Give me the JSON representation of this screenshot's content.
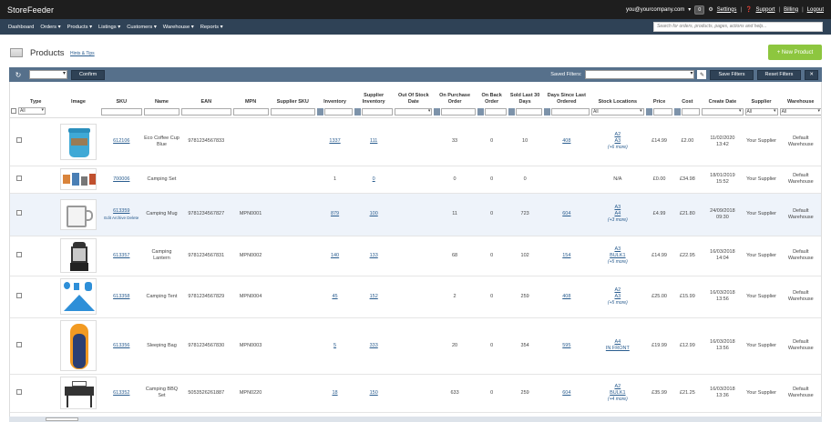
{
  "app": {
    "brand": "StoreFeeder",
    "user_email": "you@yourcompany.com",
    "notifications": "0",
    "settings": "Settings",
    "support": "Support",
    "billing": "Billing",
    "logout": "Logout"
  },
  "nav": {
    "items": [
      "Dashboard",
      "Orders ▾",
      "Products ▾",
      "Listings ▾",
      "Customers ▾",
      "Warehouse ▾",
      "Reports ▾"
    ],
    "search_placeholder": "Search for orders, products, pages, actions and help..."
  },
  "page": {
    "title": "Products",
    "hints": "Hints & Tips",
    "new_button": "+ New Product"
  },
  "toolbar": {
    "confirm": "Confirm",
    "saved_filters_label": "Saved Filters:",
    "save_filters": "Save Filters",
    "reset_filters": "Reset Filters"
  },
  "columns": {
    "type": "Type",
    "image": "Image",
    "sku": "SKU",
    "name": "Name",
    "ean": "EAN",
    "mpn": "MPN",
    "supplier_sku": "Supplier SKU",
    "inventory": "Inventory",
    "supplier_inventory": "Supplier Inventory",
    "out_of_stock": "Out Of Stock Date",
    "on_purchase": "On Purchase Order",
    "on_back": "On Back Order",
    "sold_last": "Sold Last 30 Days",
    "days_since": "Days Since Last Ordered",
    "stock_locations": "Stock Locations",
    "price": "Price",
    "cost": "Cost",
    "create_date": "Create Date",
    "supplier": "Supplier",
    "warehouse": "Warehouse"
  },
  "filters": {
    "all": "All"
  },
  "row_actions": {
    "edit": "Edit",
    "archive": "Archive",
    "delete": "Delete"
  },
  "rows": [
    {
      "sku": "612106",
      "name": "Eco Coffee Cup Blue",
      "ean": "9781234567833",
      "mpn": "",
      "inventory": "1337",
      "supplier_inventory": "111",
      "on_purchase": "33",
      "on_back": "0",
      "sold": "10",
      "days": "408",
      "loc1": "A2",
      "loc2": "A3",
      "loc_more": "(+6 more)",
      "price": "£14.99",
      "cost": "£2.00",
      "date": "11/02/2020",
      "time": "13:42",
      "supplier": "Your Supplier",
      "warehouse": "Default Warehouse"
    },
    {
      "sku": "700006",
      "name": "Camping Set",
      "ean": "",
      "mpn": "",
      "inventory": "1",
      "supplier_inventory": "0",
      "on_purchase": "0",
      "on_back": "0",
      "sold": "0",
      "days": "",
      "loc1": "N/A",
      "loc2": "",
      "loc_more": "",
      "price": "£0.00",
      "cost": "£34.98",
      "date": "18/01/2019",
      "time": "15:52",
      "supplier": "Your Supplier",
      "warehouse": "Default Warehouse"
    },
    {
      "sku": "613359",
      "name": "Camping Mug",
      "ean": "9781234567827",
      "mpn": "MPN0001",
      "inventory": "879",
      "supplier_inventory": "100",
      "on_purchase": "11",
      "on_back": "0",
      "sold": "723",
      "days": "604",
      "loc1": "A3",
      "loc2": "A4",
      "loc_more": "(+3 more)",
      "price": "£4.99",
      "cost": "£21.80",
      "date": "24/09/2018",
      "time": "09:30",
      "supplier": "Your Supplier",
      "warehouse": "Default Warehouse"
    },
    {
      "sku": "613357",
      "name": "Camping Lantern",
      "ean": "9781234567831",
      "mpn": "MPN0002",
      "inventory": "140",
      "supplier_inventory": "133",
      "on_purchase": "68",
      "on_back": "0",
      "sold": "102",
      "days": "154",
      "loc1": "A3",
      "loc2": "BULK1",
      "loc_more": "(+5 more)",
      "price": "£14.99",
      "cost": "£22.95",
      "date": "16/03/2018",
      "time": "14:04",
      "supplier": "Your Supplier",
      "warehouse": "Default Warehouse"
    },
    {
      "sku": "613358",
      "name": "Camping Tent",
      "ean": "9781234567829",
      "mpn": "MPN0004",
      "inventory": "45",
      "supplier_inventory": "152",
      "on_purchase": "2",
      "on_back": "0",
      "sold": "259",
      "days": "408",
      "loc1": "A2",
      "loc2": "A3",
      "loc_more": "(+5 more)",
      "price": "£25.00",
      "cost": "£15.99",
      "date": "16/03/2018",
      "time": "13:56",
      "supplier": "Your Supplier",
      "warehouse": "Default Warehouse"
    },
    {
      "sku": "613356",
      "name": "Sleeping Bag",
      "ean": "9781234567830",
      "mpn": "MPN0003",
      "inventory": "5",
      "supplier_inventory": "333",
      "on_purchase": "20",
      "on_back": "0",
      "sold": "354",
      "days": "595",
      "loc1": "A4",
      "loc2": "IN FRONT",
      "loc_more": "",
      "price": "£19.99",
      "cost": "£12.99",
      "date": "16/03/2018",
      "time": "13:56",
      "supplier": "Your Supplier",
      "warehouse": "Default Warehouse"
    },
    {
      "sku": "613352",
      "name": "Camping BBQ Set",
      "ean": "5053526261887",
      "mpn": "MPN0220",
      "inventory": "18",
      "supplier_inventory": "150",
      "on_purchase": "633",
      "on_back": "0",
      "sold": "259",
      "days": "604",
      "loc1": "A2",
      "loc2": "BULK1",
      "loc_more": "(+4 more)",
      "price": "£35.99",
      "cost": "£21.25",
      "date": "16/03/2018",
      "time": "13:36",
      "supplier": "Your Supplier",
      "warehouse": "Default Warehouse"
    }
  ],
  "icons": [
    "bell-icon",
    "gear-icon",
    "help-icon",
    "refresh-icon",
    "edit-icon",
    "wrench-icon",
    "products-icon"
  ]
}
